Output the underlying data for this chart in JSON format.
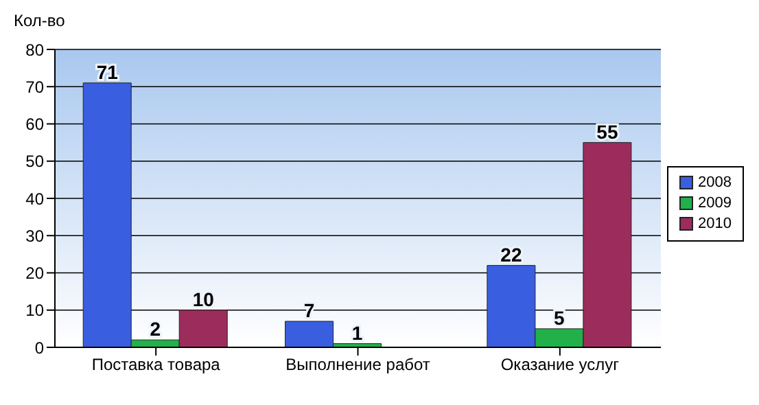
{
  "chart_data": {
    "type": "bar",
    "ylabel": "Кол-во",
    "categories": [
      "Поставка товара",
      "Выполнение  работ",
      "Оказание  услуг"
    ],
    "series": [
      {
        "name": "2008",
        "color": "#3a5ee0",
        "values": [
          71,
          7,
          22
        ]
      },
      {
        "name": "2009",
        "color": "#22b04a",
        "values": [
          2,
          1,
          5
        ]
      },
      {
        "name": "2010",
        "color": "#9c2c5c",
        "values": [
          10,
          null,
          55
        ]
      }
    ],
    "ylim": [
      0,
      80
    ],
    "yticks": [
      0,
      10,
      20,
      30,
      40,
      50,
      60,
      70,
      80
    ],
    "grid": "y",
    "legend": "right",
    "data_labels": true
  }
}
